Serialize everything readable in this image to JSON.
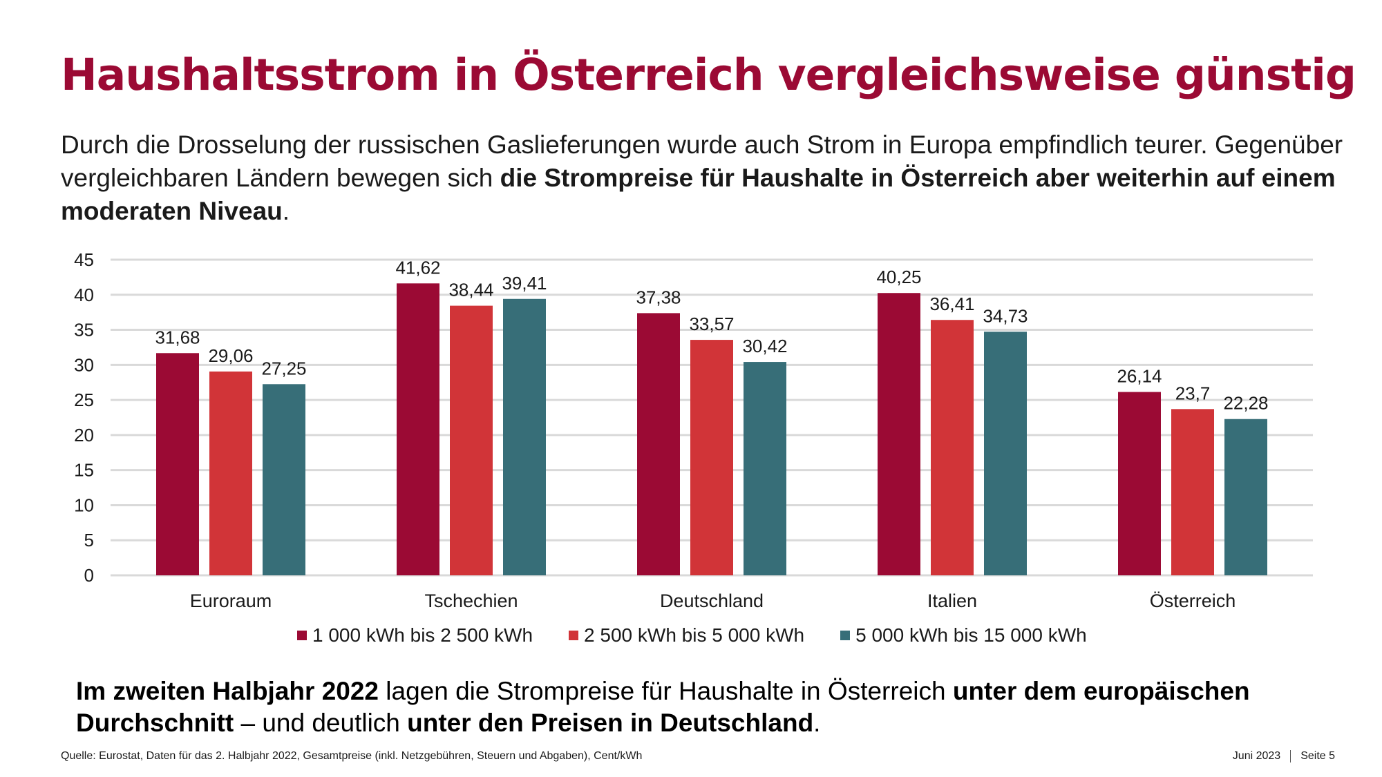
{
  "slide": {
    "title": "Haushaltsstrom in Österreich vergleichsweise günstig",
    "intro": [
      {
        "text": "Durch die Drosselung der russischen Gaslieferungen wurde auch Strom in Europa empfindlich teurer. Gegenüber vergleichbaren Ländern bewegen sich ",
        "bold": false
      },
      {
        "text": "die Strompreise für Haushalte in Österreich aber weiterhin auf einem moderaten Niveau",
        "bold": true
      },
      {
        "text": ".",
        "bold": false
      }
    ],
    "conclusion": [
      {
        "text": "Im zweiten Halbjahr 2022",
        "bold": true
      },
      {
        "text": " lagen die Strompreise für Haushalte in Österreich ",
        "bold": false
      },
      {
        "text": "unter dem europäischen Durchschnitt",
        "bold": true
      },
      {
        "text": " – und deutlich ",
        "bold": false
      },
      {
        "text": "unter den Preisen in Deutschland",
        "bold": true
      },
      {
        "text": ".",
        "bold": false
      }
    ],
    "source": "Quelle: Eurostat, Daten für das 2. Halbjahr 2022, Gesamtpreise (inkl. Netzgebühren, Steuern und Abgaben), Cent/kWh",
    "date": "Juni 2023",
    "page": "Seite 5"
  },
  "colors": {
    "title": "#9b0a34",
    "series": [
      "#9b0a34",
      "#d13438",
      "#376e78"
    ],
    "grid": "#d9d9d9"
  },
  "chart_data": {
    "type": "bar",
    "categories": [
      "Euroraum",
      "Tschechien",
      "Deutschland",
      "Italien",
      "Österreich"
    ],
    "series": [
      {
        "name": "1 000 kWh bis 2 500 kWh",
        "values": [
          31.68,
          41.62,
          37.38,
          40.25,
          26.14
        ],
        "labels": [
          "31,68",
          "41,62",
          "37,38",
          "40,25",
          "26,14"
        ]
      },
      {
        "name": "2 500 kWh bis 5 000 kWh",
        "values": [
          29.06,
          38.44,
          33.57,
          36.41,
          23.7
        ],
        "labels": [
          "29,06",
          "38,44",
          "33,57",
          "36,41",
          "23,7"
        ]
      },
      {
        "name": "5 000 kWh bis 15 000 kWh",
        "values": [
          27.25,
          39.41,
          30.42,
          34.73,
          22.28
        ],
        "labels": [
          "27,25",
          "39,41",
          "30,42",
          "34,73",
          "22,28"
        ]
      }
    ],
    "yticks": [
      "0",
      "5",
      "10",
      "15",
      "20",
      "25",
      "30",
      "35",
      "40",
      "45"
    ],
    "ylim": [
      0,
      45
    ],
    "grid": true,
    "legend": "bottom",
    "data_labels": true
  }
}
